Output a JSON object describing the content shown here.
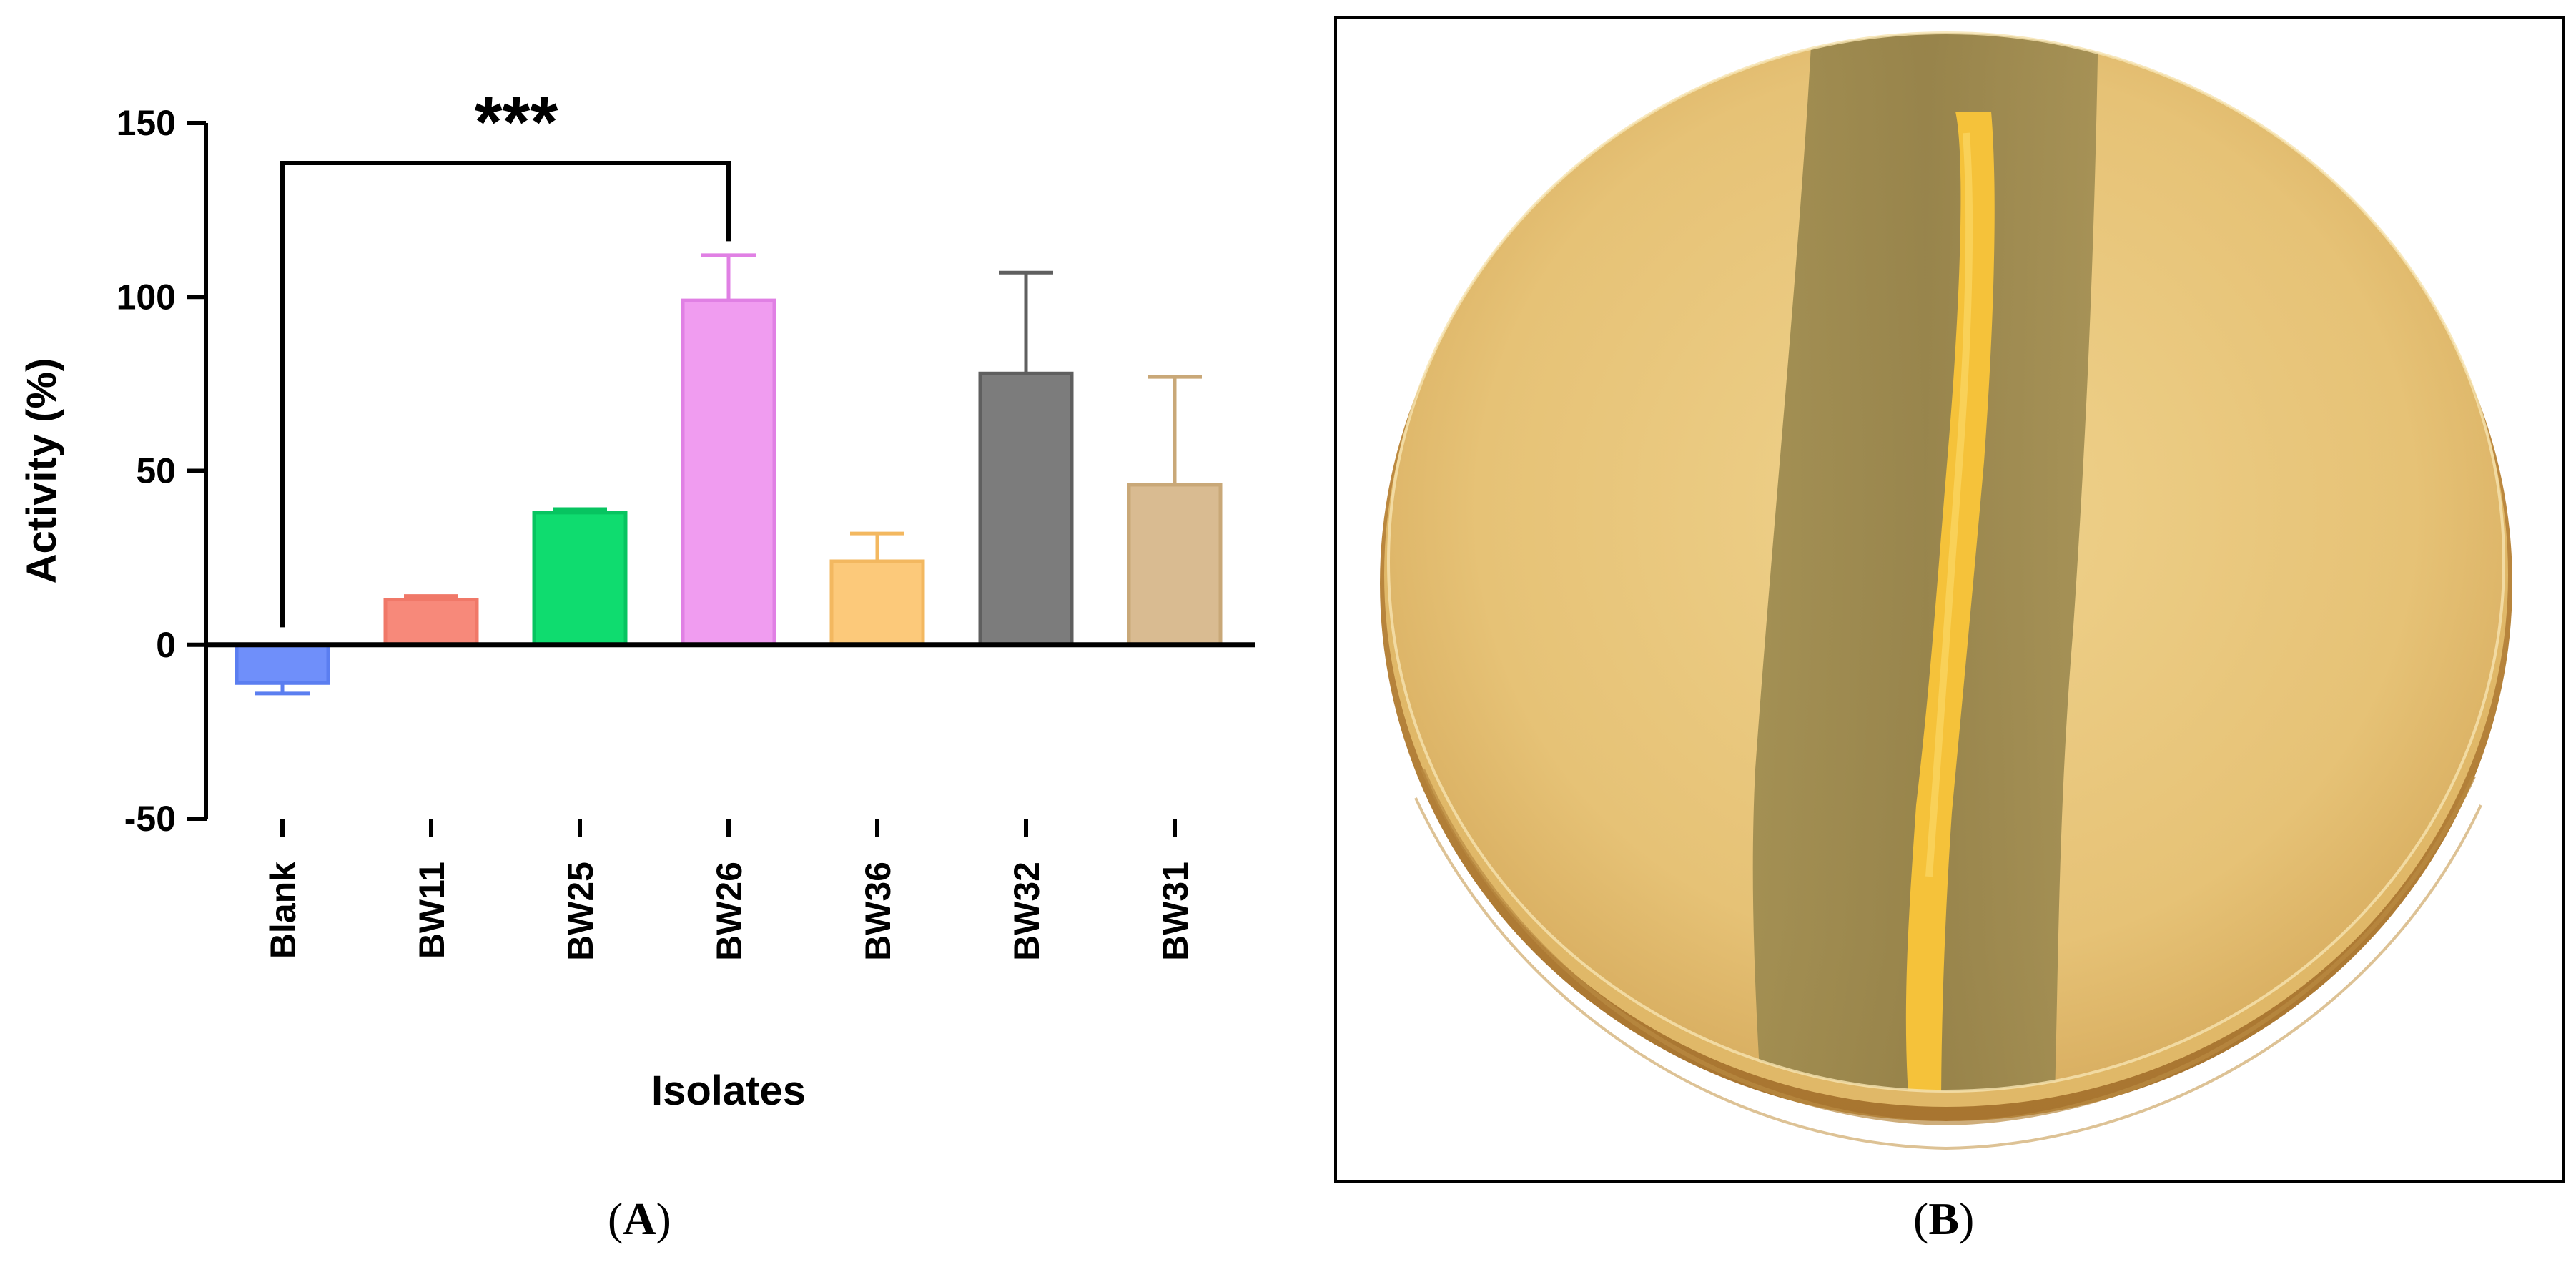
{
  "chart_data": {
    "type": "bar",
    "xlabel": "Isolates",
    "ylabel": "Activity (%)",
    "ylim": [
      -50,
      150
    ],
    "yticks": [
      -50,
      0,
      50,
      100,
      150
    ],
    "categories": [
      "Blank",
      "BW11",
      "BW25",
      "BW26",
      "BW36",
      "BW32",
      "BW31"
    ],
    "values": [
      -11,
      13,
      38,
      99,
      24,
      78,
      46
    ],
    "errors": [
      3,
      1,
      1,
      13,
      8,
      29,
      31
    ],
    "colors": [
      "#6f8ffa",
      "#f7897a",
      "#0fdc6f",
      "#f09cf0",
      "#fcc97a",
      "#7c7c7c",
      "#d9bb91"
    ],
    "edge_colors": [
      "#5b7ef0",
      "#f07868",
      "#07c460",
      "#e080e4",
      "#f3b860",
      "#5f5f5f",
      "#c9a878"
    ],
    "grid": false,
    "legend": "none",
    "annotation": {
      "text": "***",
      "from": "Blank",
      "to": "BW26"
    }
  },
  "panels": {
    "a_label": "A",
    "b_label": "B"
  }
}
